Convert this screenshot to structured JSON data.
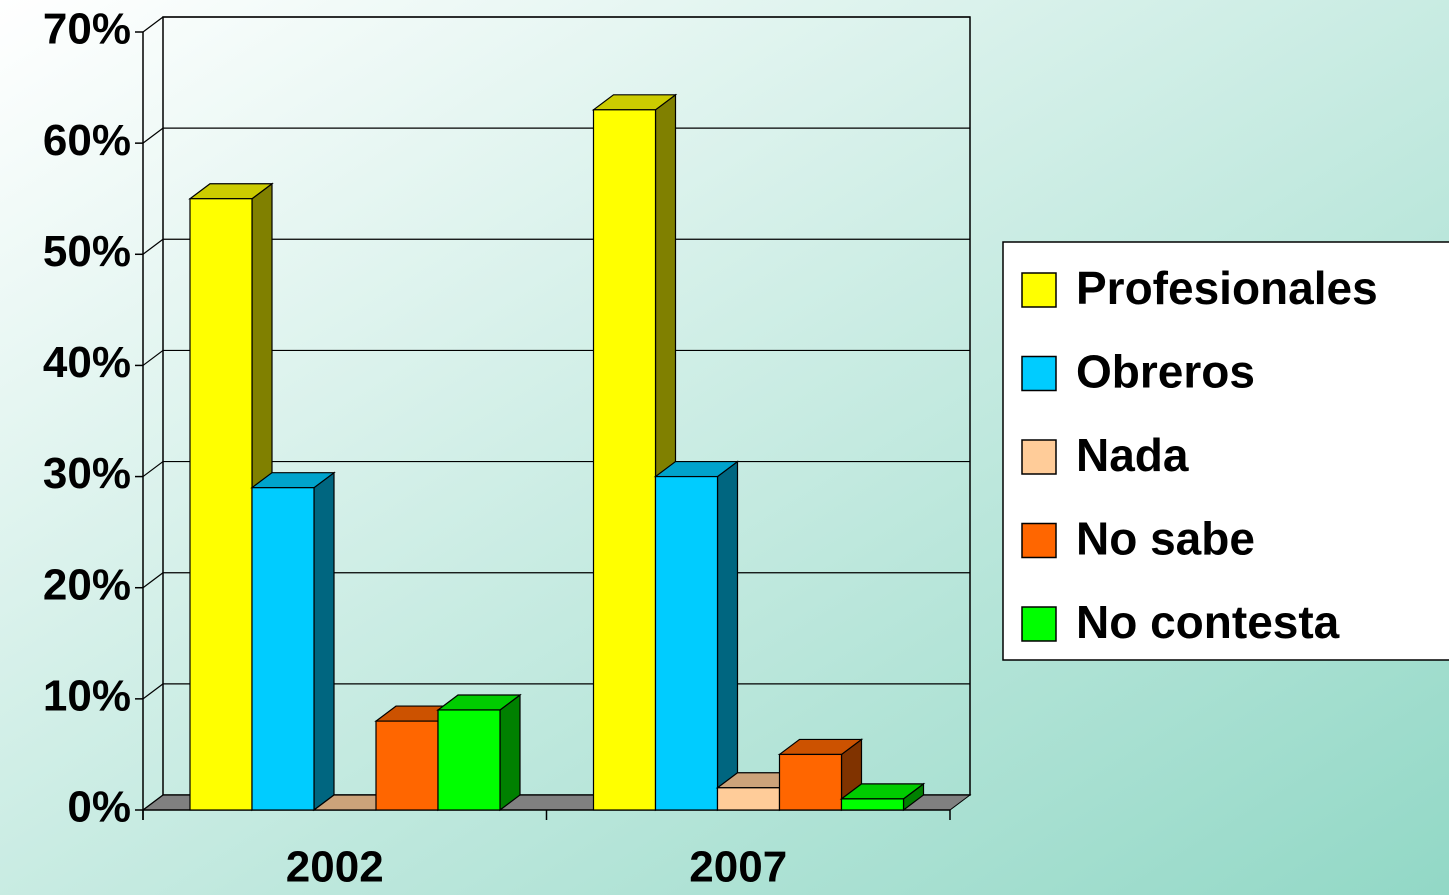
{
  "chart_data": {
    "type": "bar3d",
    "categories": [
      "2002",
      "2007"
    ],
    "series": [
      {
        "name": "Profesionales",
        "color": "#ffff00",
        "values": [
          55,
          63
        ]
      },
      {
        "name": "Obreros",
        "color": "#00ccff",
        "values": [
          29,
          30
        ]
      },
      {
        "name": "Nada",
        "color": "#ffcc99",
        "values": [
          0,
          2
        ]
      },
      {
        "name": "No sabe",
        "color": "#ff6600",
        "values": [
          8,
          5
        ]
      },
      {
        "name": "No contesta",
        "color": "#00ff00",
        "values": [
          9,
          1
        ]
      }
    ],
    "ylim": [
      0,
      70
    ],
    "yticks": [
      {
        "value": 0,
        "label": "0%"
      },
      {
        "value": 10,
        "label": "10%"
      },
      {
        "value": 20,
        "label": "20%"
      },
      {
        "value": 30,
        "label": "30%"
      },
      {
        "value": 40,
        "label": "40%"
      },
      {
        "value": 50,
        "label": "50%"
      },
      {
        "value": 60,
        "label": "60%"
      },
      {
        "value": 70,
        "label": "70%"
      }
    ],
    "grid": true,
    "legend": "right"
  }
}
